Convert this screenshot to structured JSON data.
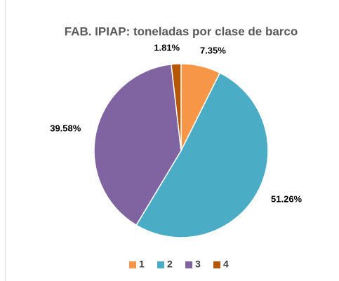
{
  "chart_data": {
    "type": "pie",
    "title": "FAB. IPIAP: toneladas por clase de barco",
    "categories": [
      "1",
      "2",
      "3",
      "4"
    ],
    "values": [
      7.35,
      51.26,
      39.58,
      1.81
    ],
    "value_labels": [
      "7.35%",
      "51.26%",
      "39.58%",
      "1.81%"
    ],
    "colors": [
      "#f79646",
      "#4bacc6",
      "#8064a2",
      "#b65708"
    ],
    "legend": "bottom"
  }
}
